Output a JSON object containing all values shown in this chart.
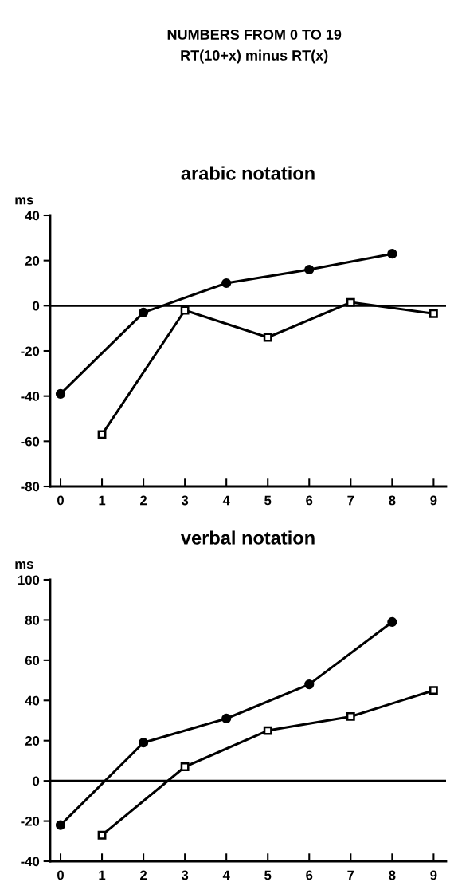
{
  "chart_data": [
    {
      "type": "line",
      "title": "arabic notation",
      "ylabel": "ms",
      "annotations": [
        "NUMBERS FROM 0 TO 19",
        "RT(10+x) minus RT(x)"
      ],
      "categories": [
        "0",
        "1",
        "2",
        "3",
        "4",
        "5",
        "6",
        "7",
        "8",
        "9"
      ],
      "series": [
        {
          "color": "#000000",
          "marker": "circle",
          "values": [
            -39,
            null,
            -3,
            null,
            10,
            null,
            16,
            null,
            23,
            null
          ]
        },
        {
          "color": "#000000",
          "marker": "square",
          "values": [
            null,
            -57,
            null,
            -2,
            null,
            -14,
            null,
            1.5,
            null,
            -3.5
          ]
        }
      ],
      "ylim": [
        -80,
        40
      ],
      "yticks": [
        -80,
        -60,
        -40,
        -20,
        0,
        20,
        40
      ],
      "ref_lines": [
        {
          "axis": "y",
          "value": 0,
          "color": "#000000"
        }
      ],
      "grid": false,
      "legend": false
    },
    {
      "type": "line",
      "title": "verbal notation",
      "ylabel": "ms",
      "categories": [
        "0",
        "1",
        "2",
        "3",
        "4",
        "5",
        "6",
        "7",
        "8",
        "9"
      ],
      "series": [
        {
          "color": "#000000",
          "marker": "circle",
          "values": [
            -22,
            null,
            19,
            null,
            31,
            null,
            48,
            null,
            79,
            null
          ]
        },
        {
          "color": "#000000",
          "marker": "square",
          "values": [
            null,
            -27,
            null,
            7,
            null,
            25,
            null,
            32,
            null,
            45
          ]
        }
      ],
      "ylim": [
        -40,
        100
      ],
      "yticks": [
        -40,
        -20,
        0,
        20,
        40,
        60,
        80,
        100
      ],
      "ref_lines": [
        {
          "axis": "y",
          "value": 0,
          "color": "#000000"
        }
      ],
      "grid": false,
      "legend": false
    }
  ]
}
